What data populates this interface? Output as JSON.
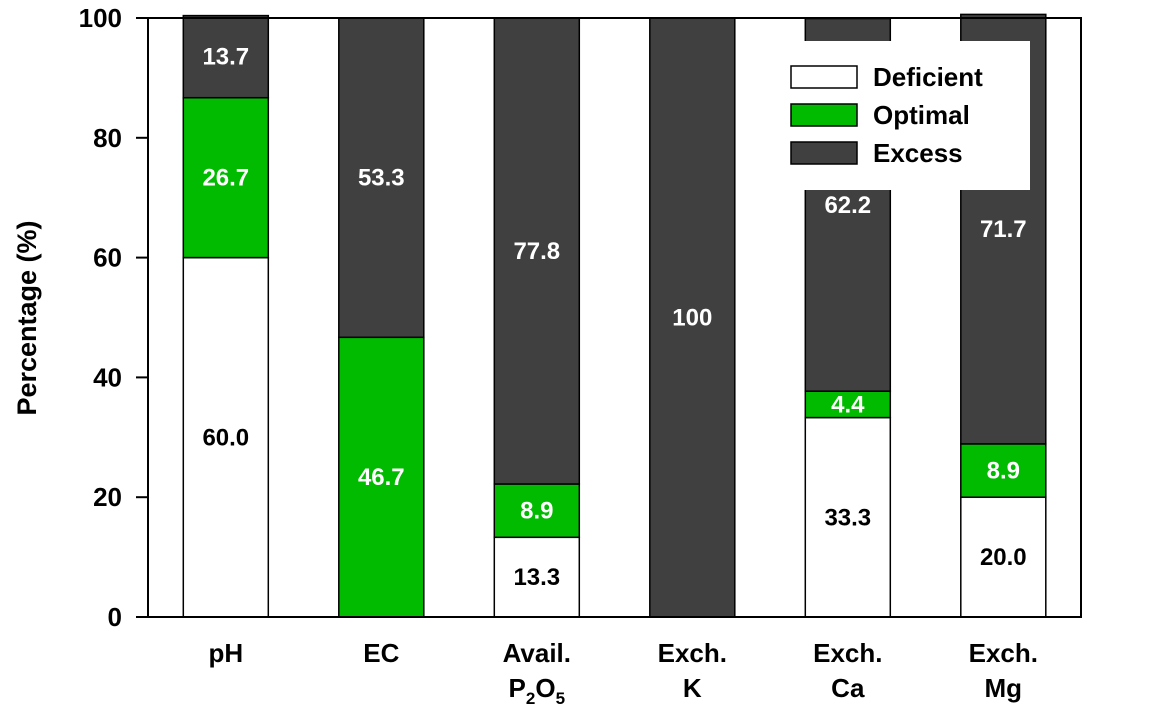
{
  "chart_data": {
    "type": "bar",
    "stacked": true,
    "ylabel": "Percentage (%)",
    "ylim": [
      0,
      100
    ],
    "yticks": [
      0,
      20,
      40,
      60,
      80,
      100
    ],
    "grid": false,
    "legend_position": "top-right",
    "categories": [
      {
        "lines": [
          [
            {
              "t": "pH"
            }
          ]
        ]
      },
      {
        "lines": [
          [
            {
              "t": "EC"
            }
          ]
        ]
      },
      {
        "lines": [
          [
            {
              "t": "Avail."
            }
          ],
          [
            {
              "t": "P"
            },
            {
              "t": "2",
              "sub": true
            },
            {
              "t": "O"
            },
            {
              "t": "5",
              "sub": true
            }
          ]
        ]
      },
      {
        "lines": [
          [
            {
              "t": "Exch."
            }
          ],
          [
            {
              "t": "K"
            }
          ]
        ]
      },
      {
        "lines": [
          [
            {
              "t": "Exch."
            }
          ],
          [
            {
              "t": "Ca"
            }
          ]
        ]
      },
      {
        "lines": [
          [
            {
              "t": "Exch."
            }
          ],
          [
            {
              "t": "Mg"
            }
          ]
        ]
      }
    ],
    "series": [
      {
        "name": "Deficient",
        "color": "#ffffff",
        "label_color": "#000000",
        "values": [
          60.0,
          0,
          13.3,
          0,
          33.3,
          20.0
        ],
        "labels": [
          "60.0",
          "",
          "13.3",
          "",
          "33.3",
          "20.0"
        ]
      },
      {
        "name": "Optimal",
        "color": "#00bb00",
        "label_color": "#ffffff",
        "values": [
          26.7,
          46.7,
          8.9,
          0,
          4.4,
          8.9
        ],
        "labels": [
          "26.7",
          "46.7",
          "8.9",
          "",
          "4.4",
          "8.9"
        ]
      },
      {
        "name": "Excess",
        "color": "#404040",
        "label_color": "#ffffff",
        "values": [
          13.7,
          53.3,
          77.8,
          100,
          62.2,
          71.7
        ],
        "labels": [
          "13.7",
          "53.3",
          "77.8",
          "100",
          "62.2",
          "71.7"
        ]
      }
    ]
  }
}
